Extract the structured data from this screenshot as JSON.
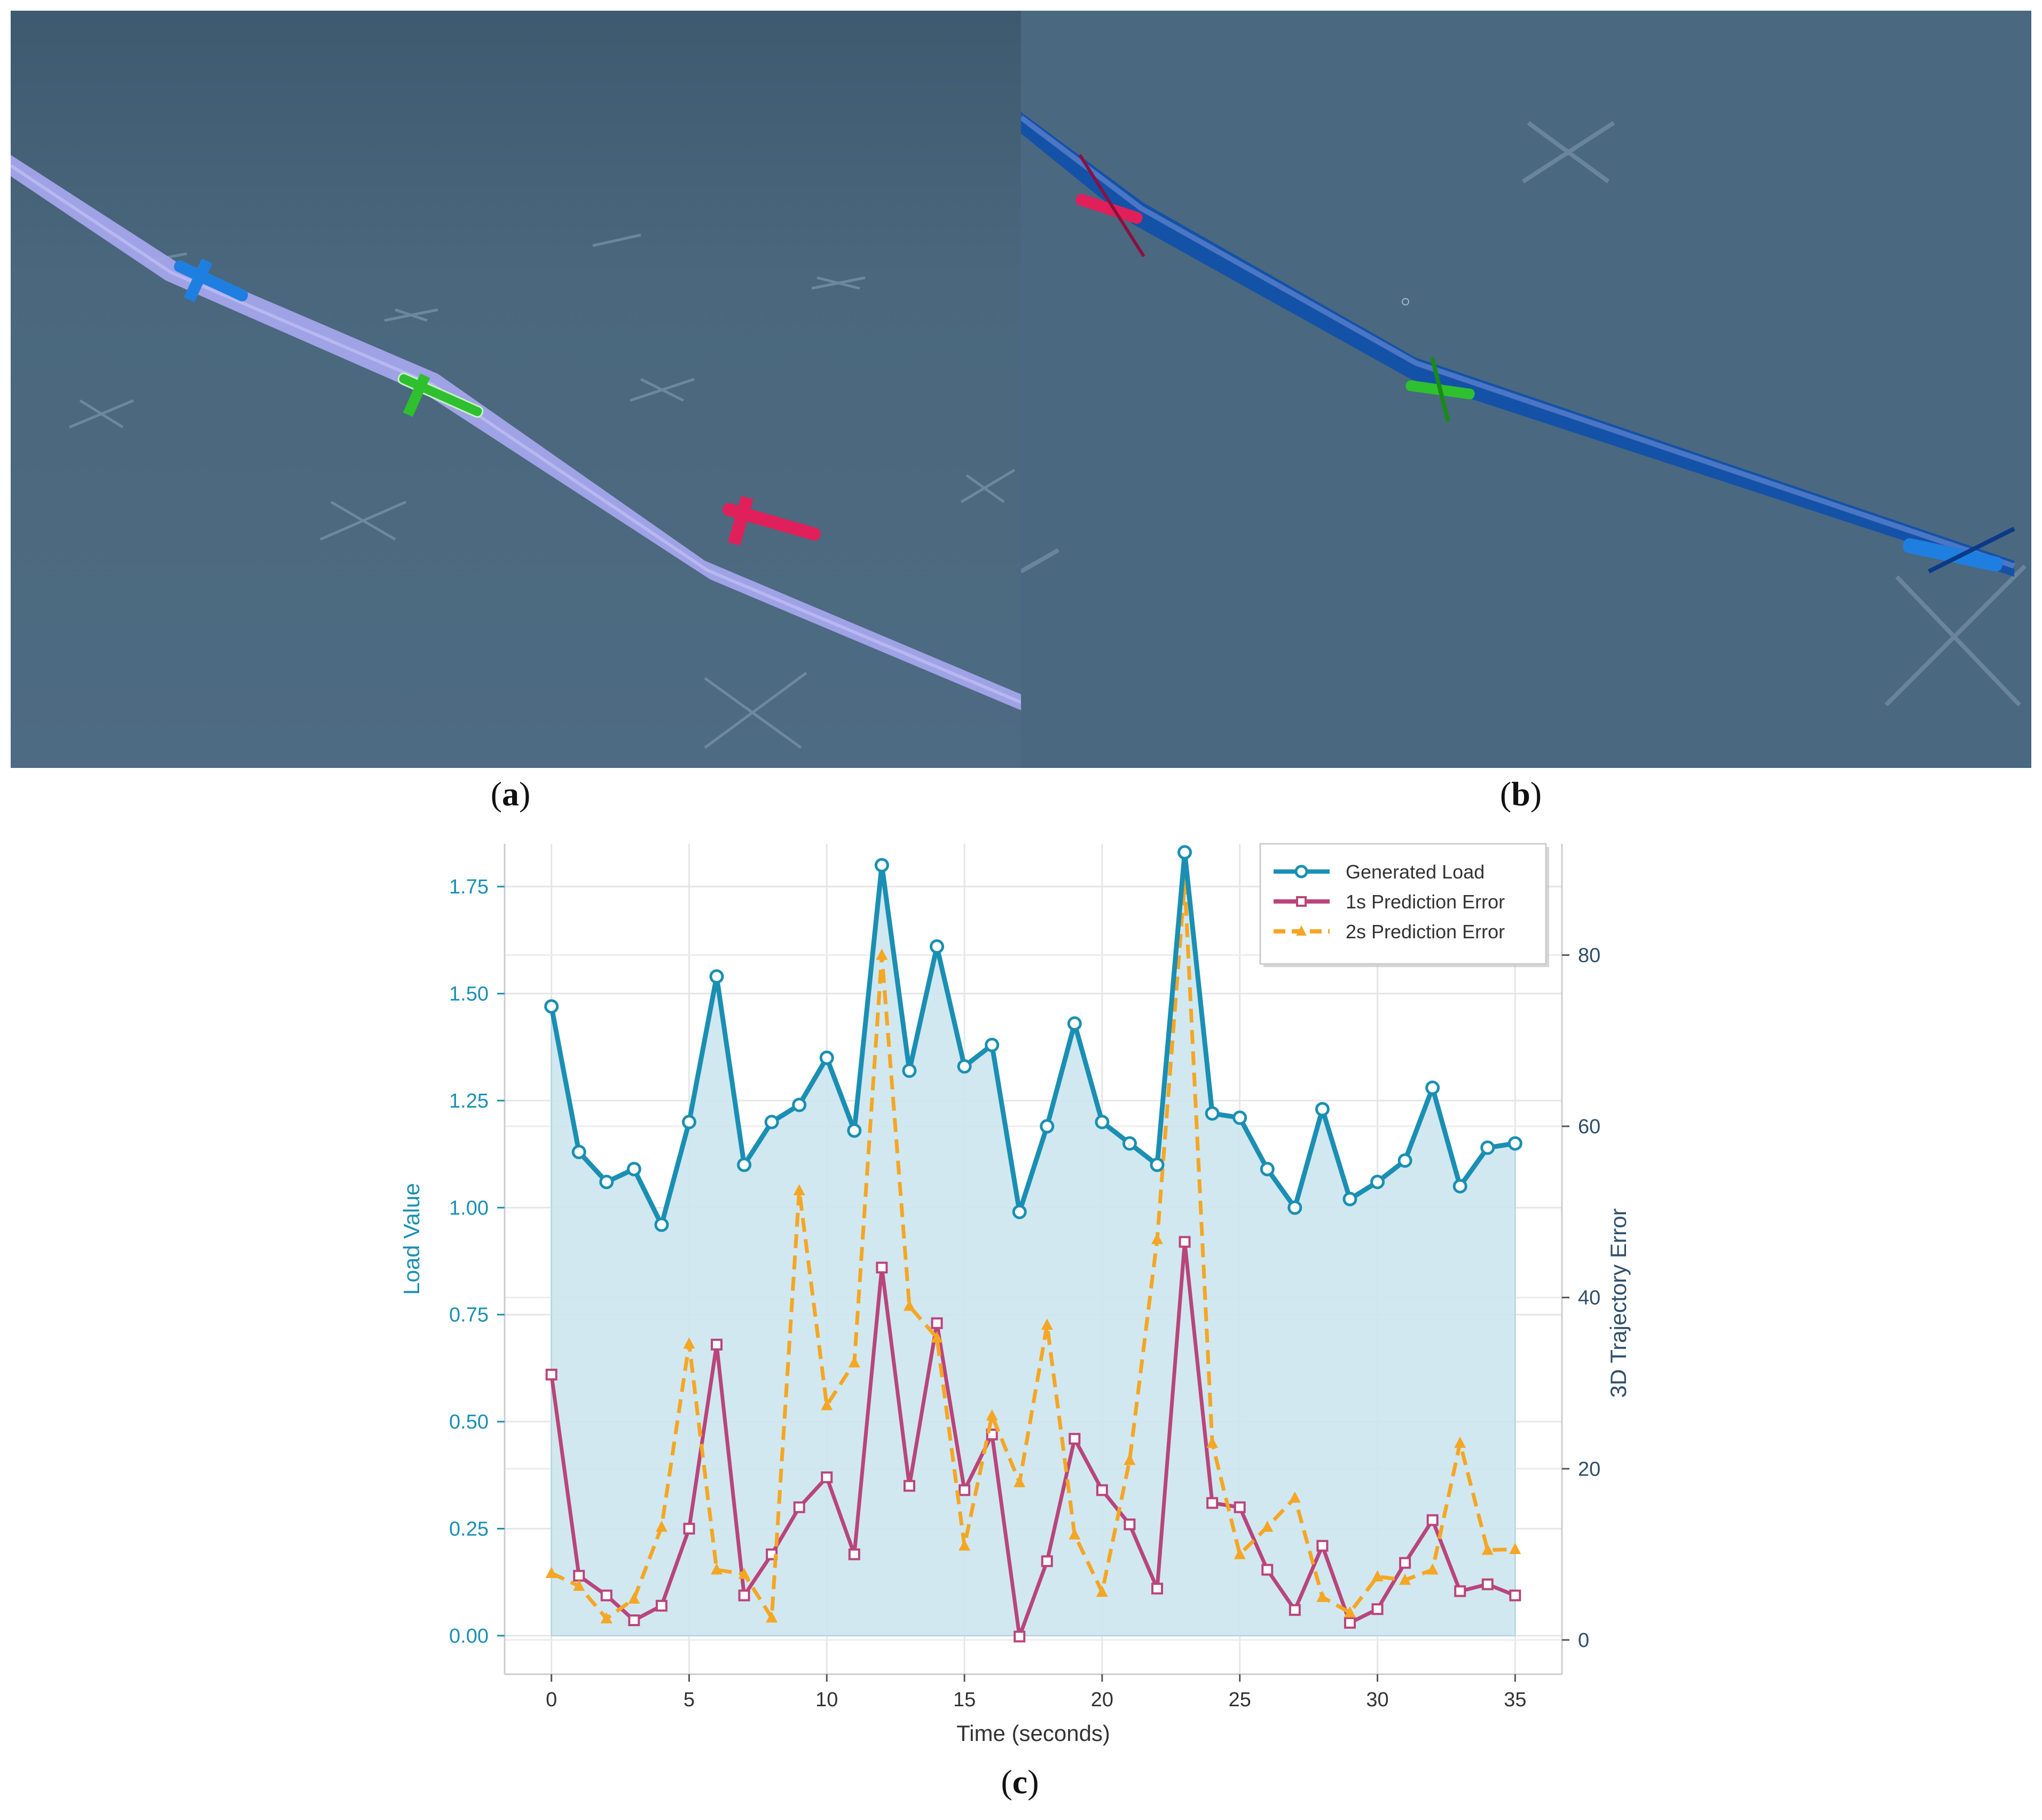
{
  "captions": {
    "a": "a",
    "b": "b",
    "c": "c"
  },
  "panel_a": {
    "background": "#4a677d",
    "corridor_color": "#a8a8f0",
    "aircraft": [
      {
        "name": "blue-aircraft",
        "color": "#1f7fe0"
      },
      {
        "name": "green-aircraft",
        "color": "#2ec02e"
      },
      {
        "name": "red-aircraft",
        "color": "#e0205a"
      }
    ]
  },
  "panel_b": {
    "background": "#4a6880",
    "corridor_color": "#0b4fae",
    "aircraft": [
      {
        "name": "red-aircraft",
        "color": "#e0205a"
      },
      {
        "name": "green-aircraft",
        "color": "#2ec02e"
      },
      {
        "name": "blue-aircraft",
        "color": "#1f7fe0"
      }
    ]
  },
  "chart_data": {
    "type": "line",
    "title": "",
    "xlabel": "Time (seconds)",
    "ylabel_left": "Load Value",
    "ylabel_right": "3D Trajectory Error",
    "xlim": [
      -1.7,
      36.7
    ],
    "ylim_left": [
      -0.09,
      1.85
    ],
    "ylim_right": [
      -4.0,
      93.0
    ],
    "x_ticks": [
      0,
      5,
      10,
      15,
      20,
      25,
      30,
      35
    ],
    "y_ticks_left": [
      0.0,
      0.25,
      0.5,
      0.75,
      1.0,
      1.25,
      1.5,
      1.75
    ],
    "y_ticks_left_labels": [
      "0.00",
      "0.25",
      "0.50",
      "0.75",
      "1.00",
      "1.25",
      "1.50",
      "1.75"
    ],
    "y_ticks_right": [
      0,
      20,
      40,
      60,
      80
    ],
    "grid": true,
    "legend_position": "top-right",
    "x": [
      0,
      1,
      2,
      3,
      4,
      5,
      6,
      7,
      8,
      9,
      10,
      11,
      12,
      13,
      14,
      15,
      16,
      17,
      18,
      19,
      20,
      21,
      22,
      23,
      24,
      25,
      26,
      27,
      28,
      29,
      30,
      31,
      32,
      33,
      34,
      35
    ],
    "series": [
      {
        "name": "Generated Load",
        "axis": "left",
        "color": "#1a8fb3",
        "fill": "#cde6f0",
        "marker": "circle",
        "dash": "solid",
        "values": [
          1.47,
          1.13,
          1.06,
          1.09,
          0.96,
          1.2,
          1.54,
          1.1,
          1.2,
          1.24,
          1.35,
          1.18,
          1.8,
          1.32,
          1.61,
          1.33,
          1.38,
          0.99,
          1.19,
          1.43,
          1.2,
          1.15,
          1.1,
          1.83,
          1.22,
          1.21,
          1.09,
          1.0,
          1.23,
          1.02,
          1.06,
          1.11,
          1.28,
          1.05,
          1.14,
          1.15
        ]
      },
      {
        "name": "1s Prediction Error",
        "axis": "right",
        "color": "#b9457a",
        "marker": "square",
        "dash": "solid",
        "values": [
          31,
          7.5,
          5.2,
          2.3,
          4,
          13,
          34.5,
          5.2,
          10,
          15.5,
          19,
          10,
          43.5,
          18,
          37,
          17.5,
          24,
          0.4,
          9.2,
          23.5,
          17.5,
          13.5,
          6,
          46.5,
          16,
          15.5,
          8.2,
          3.5,
          11,
          2,
          3.6,
          9,
          14,
          5.7,
          6.5,
          5.2
        ]
      },
      {
        "name": "2s Prediction Error",
        "axis": "right",
        "color": "#f5a623",
        "marker": "triangle",
        "dash": "dashed",
        "values": [
          7.8,
          6.3,
          2.5,
          4.8,
          13.2,
          34.6,
          8.2,
          7.7,
          2.6,
          52.5,
          27.4,
          32.4,
          80,
          39,
          35.3,
          11,
          26.2,
          18.4,
          36.8,
          12.3,
          5.6,
          21,
          46.8,
          88.5,
          23,
          10,
          13.2,
          16.6,
          5,
          3.2,
          7.4,
          7,
          8.2,
          23,
          10.5,
          10.6
        ]
      }
    ]
  }
}
